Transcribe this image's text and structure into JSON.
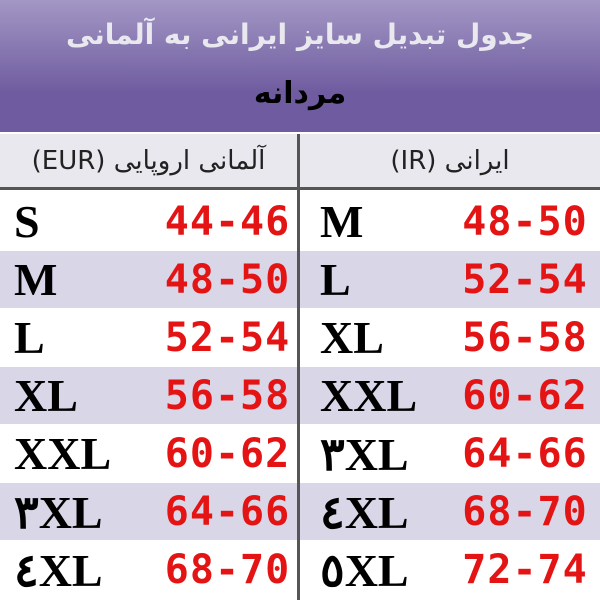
{
  "header": {
    "title": "جدول تبدیل سایز ایرانی به آلمانی",
    "subtitle": "مردانه"
  },
  "table": {
    "columns": [
      "آلمانی اروپایی (EUR)",
      "ایرانی (IR)"
    ],
    "rows": [
      [
        "S",
        "44-46",
        "M",
        "48-50"
      ],
      [
        "M",
        "48-50",
        "L",
        "52-54"
      ],
      [
        "L",
        "52-54",
        "XL",
        "56-58"
      ],
      [
        "XL",
        "56-58",
        "XXL",
        "60-62"
      ],
      [
        "XXL",
        "60-62",
        "۳XL",
        "64-66"
      ],
      [
        "۳XL",
        "64-66",
        "٤XL",
        "68-70"
      ],
      [
        "٤XL",
        "68-70",
        "٥XL",
        "72-74"
      ]
    ]
  }
}
